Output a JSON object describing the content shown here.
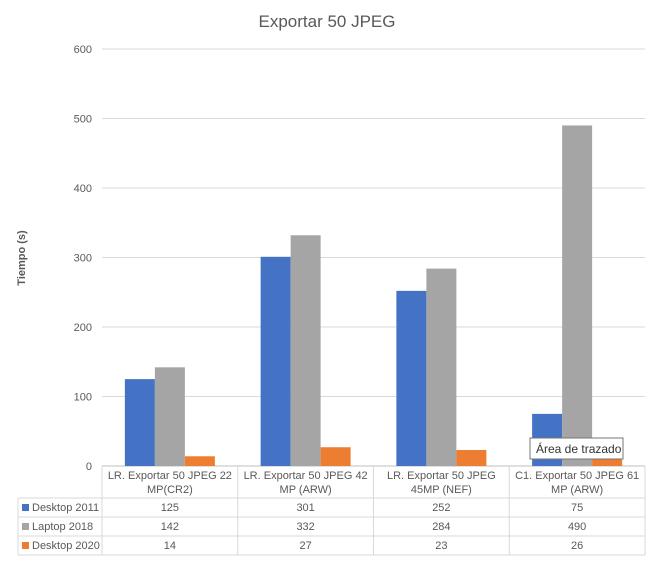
{
  "chart_data": {
    "type": "bar",
    "title": "Exportar 50 JPEG",
    "ylabel": "Tiempo (s)",
    "xlabel": "",
    "ylim": [
      0,
      600
    ],
    "yticks": [
      0,
      100,
      200,
      300,
      400,
      500,
      600
    ],
    "grid": true,
    "legend": "table",
    "categories": [
      [
        "LR. Exportar 50 JPEG 22",
        "MP(CR2)"
      ],
      [
        "LR. Exportar 50 JPEG 42",
        "MP (ARW)"
      ],
      [
        "LR. Exportar 50 JPEG",
        "45MP (NEF)"
      ],
      [
        "C1. Exportar 50 JPEG 61",
        "MP (ARW)"
      ]
    ],
    "series": [
      {
        "name": "Desktop 2011",
        "color": "#4472C4",
        "values": [
          125,
          301,
          252,
          75
        ]
      },
      {
        "name": "Laptop 2018",
        "color": "#A5A5A5",
        "values": [
          142,
          332,
          284,
          490
        ]
      },
      {
        "name": "Desktop 2020",
        "color": "#ED7D31",
        "values": [
          14,
          27,
          23,
          26
        ]
      }
    ]
  },
  "tooltip": {
    "text": "Área de trazado"
  }
}
